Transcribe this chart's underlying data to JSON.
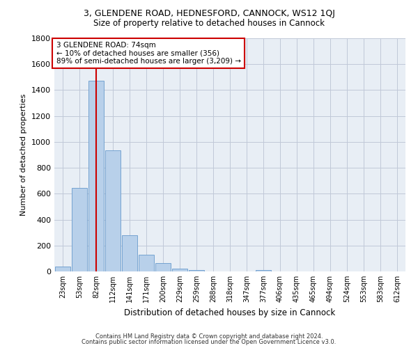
{
  "title1": "3, GLENDENE ROAD, HEDNESFORD, CANNOCK, WS12 1QJ",
  "title2": "Size of property relative to detached houses in Cannock",
  "xlabel": "Distribution of detached houses by size in Cannock",
  "ylabel": "Number of detached properties",
  "bar_labels": [
    "23sqm",
    "53sqm",
    "82sqm",
    "112sqm",
    "141sqm",
    "171sqm",
    "200sqm",
    "229sqm",
    "259sqm",
    "288sqm",
    "318sqm",
    "347sqm",
    "377sqm",
    "406sqm",
    "435sqm",
    "465sqm",
    "494sqm",
    "524sqm",
    "553sqm",
    "583sqm",
    "612sqm"
  ],
  "bar_values": [
    38,
    645,
    1470,
    935,
    280,
    128,
    62,
    22,
    12,
    0,
    0,
    0,
    12,
    0,
    0,
    0,
    0,
    0,
    0,
    0,
    0
  ],
  "bar_color": "#b8d0ea",
  "bar_edge_color": "#6699cc",
  "bg_color": "#e8eef5",
  "grid_color": "#c0c8d8",
  "vline_color": "#cc0000",
  "annotation_text": "3 GLENDENE ROAD: 74sqm\n← 10% of detached houses are smaller (356)\n89% of semi-detached houses are larger (3,209) →",
  "annotation_box_color": "#ffffff",
  "annotation_border_color": "#cc0000",
  "ylim": [
    0,
    1800
  ],
  "yticks": [
    0,
    200,
    400,
    600,
    800,
    1000,
    1200,
    1400,
    1600,
    1800
  ],
  "footer1": "Contains HM Land Registry data © Crown copyright and database right 2024.",
  "footer2": "Contains public sector information licensed under the Open Government Licence v3.0."
}
